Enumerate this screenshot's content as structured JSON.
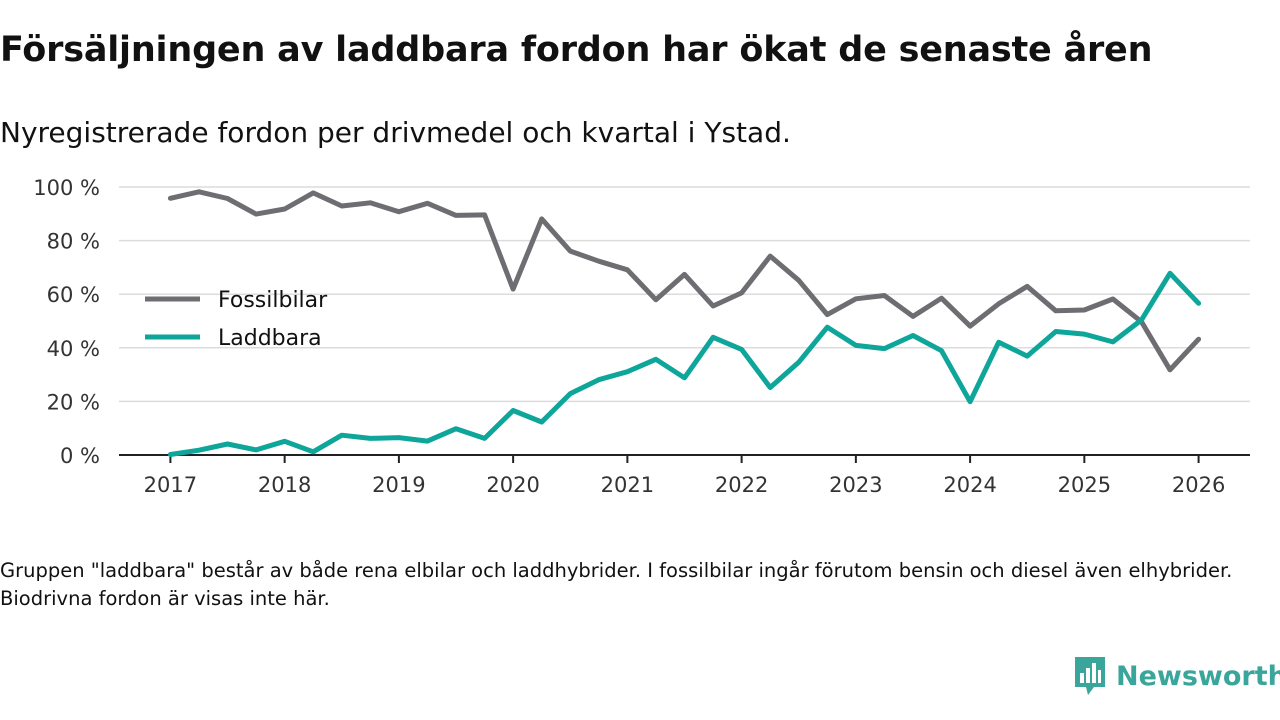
{
  "header": {
    "title": "Försäljningen av laddbara fordon har ökat de senaste åren",
    "subtitle": "Nyregistrerade fordon per drivmedel och kvartal i Ystad."
  },
  "footer": {
    "note": "Gruppen \"laddbara\" består av både rena elbilar och laddhybrider. I fossilbilar ingår förutom bensin och diesel även elhybrider. Biodrivna fordon är visas inte här.",
    "brand": "Newsworthy",
    "brand_color": "#3aa59a"
  },
  "chart_data": {
    "type": "line",
    "title": "Försäljningen av laddbara fordon har ökat de senaste åren",
    "subtitle": "Nyregistrerade fordon per drivmedel och kvartal i Ystad.",
    "xlabel": "",
    "ylabel": "",
    "xlim": [
      2016.55,
      2026.45
    ],
    "ylim": [
      0,
      100
    ],
    "x_ticks": [
      2017,
      2018,
      2019,
      2020,
      2021,
      2022,
      2023,
      2024,
      2025,
      2026
    ],
    "y_ticks": [
      0,
      20,
      40,
      60,
      80,
      100
    ],
    "y_tick_labels": [
      "0 %",
      "20 %",
      "40 %",
      "60 %",
      "80 %",
      "100 %"
    ],
    "grid": true,
    "legend_position": "left",
    "x": [
      2017,
      2017.25,
      2017.5,
      2017.75,
      2018,
      2018.25,
      2018.5,
      2018.75,
      2019,
      2019.25,
      2019.5,
      2019.75,
      2020,
      2020.25,
      2020.5,
      2020.75,
      2021,
      2021.25,
      2021.5,
      2021.75,
      2022,
      2022.25,
      2022.5,
      2022.75,
      2023,
      2023.25,
      2023.5,
      2023.75,
      2024,
      2024.25,
      2024.5,
      2024.75,
      2025,
      2025.25,
      2025.5,
      2025.75,
      2026
    ],
    "series": [
      {
        "name": "Fossilbilar",
        "color": "#6d6d72",
        "values": [
          95.8,
          98.2,
          95.7,
          89.9,
          91.8,
          97.8,
          92.9,
          94.1,
          90.8,
          93.9,
          89.4,
          89.6,
          61.9,
          88.1,
          76.1,
          72.3,
          69.1,
          57.9,
          67.4,
          55.6,
          60.5,
          74.2,
          65.2,
          52.4,
          58.3,
          59.5,
          51.7,
          58.5,
          48.1,
          56.4,
          62.9,
          53.8,
          54.1,
          58.2,
          49.7,
          31.8,
          43.2
        ]
      },
      {
        "name": "Laddbara",
        "color": "#0ea59a",
        "values": [
          0.2,
          1.8,
          4.1,
          1.9,
          5.1,
          1.2,
          7.4,
          6.2,
          6.5,
          5.2,
          9.8,
          6.2,
          16.6,
          12.3,
          22.9,
          28.1,
          31.1,
          35.7,
          28.8,
          43.9,
          39.4,
          25.2,
          34.6,
          47.7,
          40.9,
          39.7,
          44.6,
          38.9,
          19.9,
          42.1,
          36.9,
          46.1,
          45.1,
          42.2,
          50.4,
          67.8,
          56.6
        ]
      }
    ]
  }
}
